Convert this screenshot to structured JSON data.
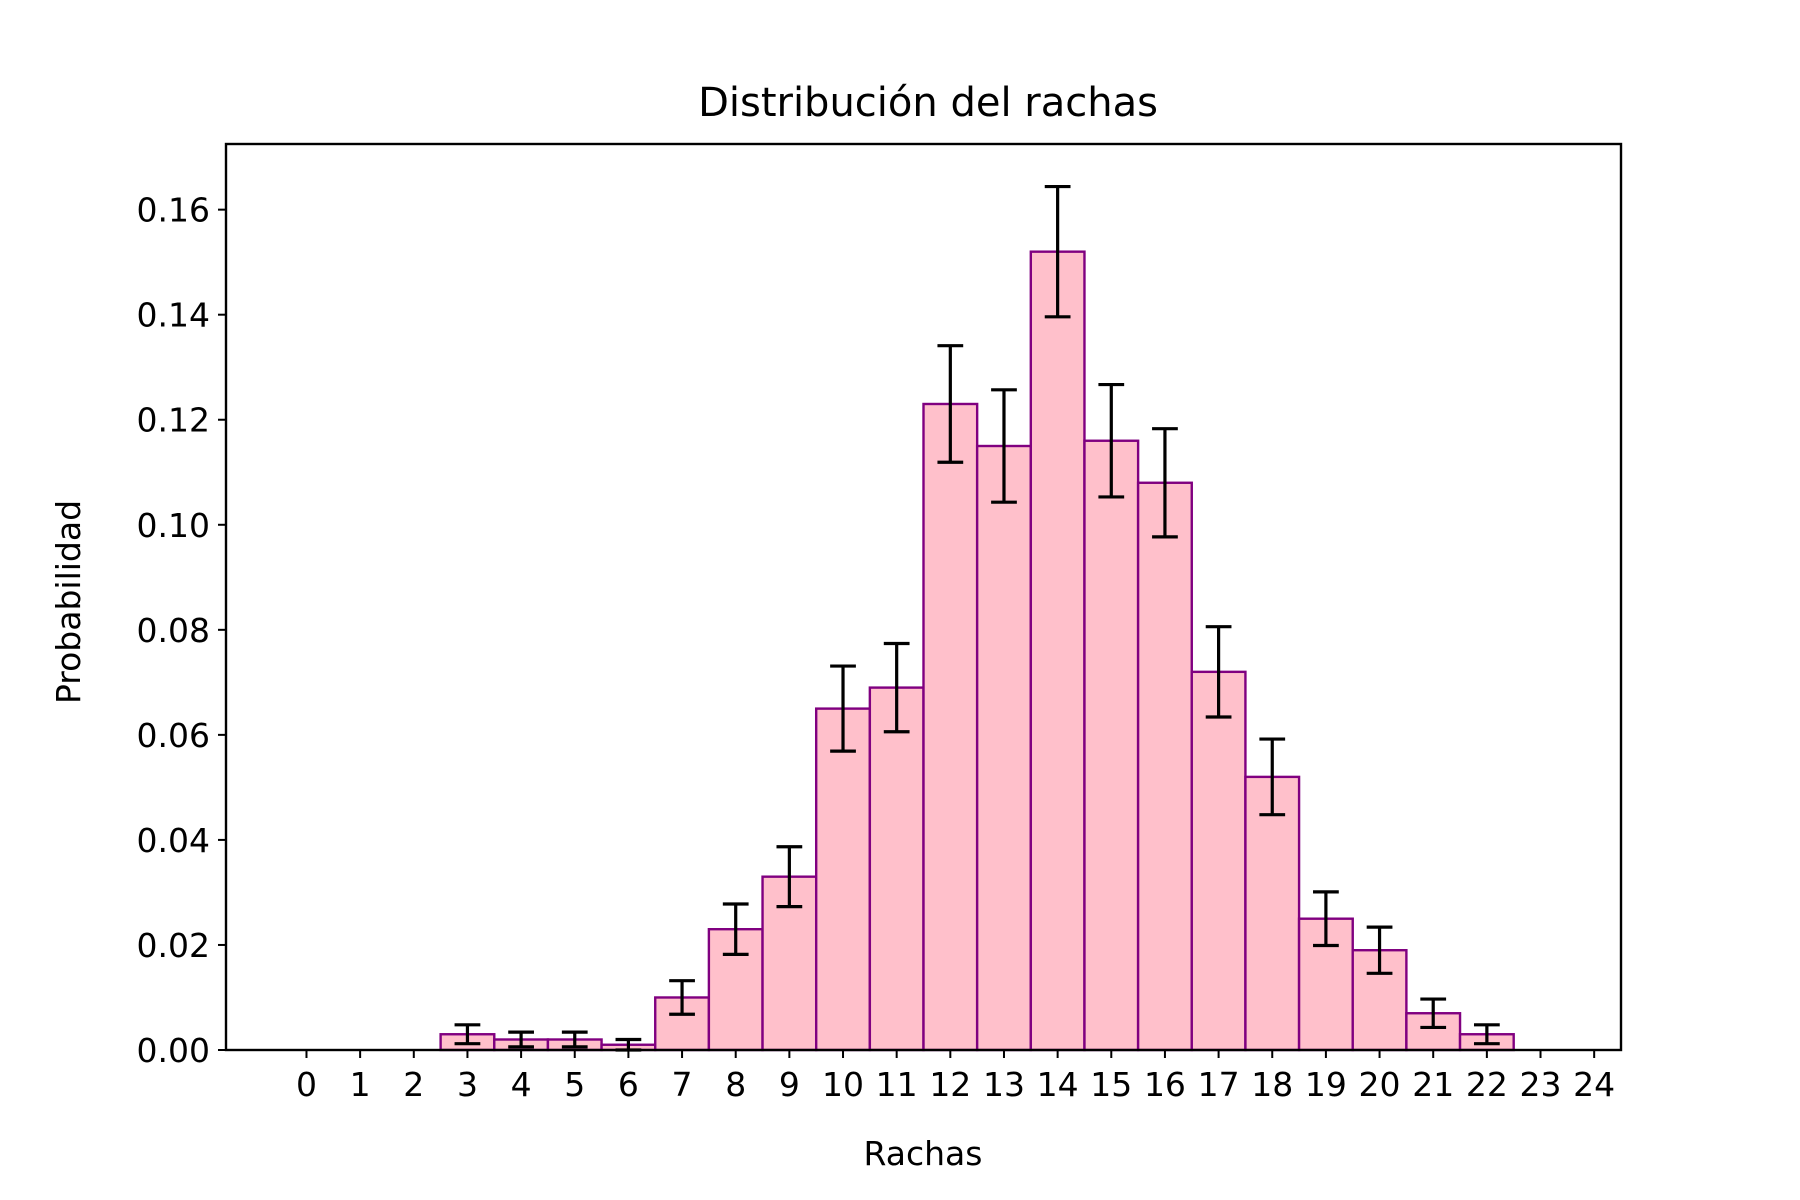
{
  "chart_data": {
    "type": "bar",
    "title": "Distribución del rachas",
    "xlabel": "Rachas",
    "ylabel": "Probabilidad",
    "categories": [
      0,
      1,
      2,
      3,
      4,
      5,
      6,
      7,
      8,
      9,
      10,
      11,
      12,
      13,
      14,
      15,
      16,
      17,
      18,
      19,
      20,
      21,
      22,
      23,
      24
    ],
    "series": [
      {
        "name": "Probabilidad",
        "values": [
          0.0,
          0.0,
          0.0,
          0.003,
          0.002,
          0.002,
          0.001,
          0.01,
          0.023,
          0.033,
          0.065,
          0.069,
          0.123,
          0.115,
          0.152,
          0.116,
          0.108,
          0.072,
          0.052,
          0.025,
          0.019,
          0.007,
          0.003,
          0.0,
          0.0
        ],
        "errors": [
          0.0,
          0.0,
          0.0,
          0.0018,
          0.0014,
          0.0014,
          0.001,
          0.0032,
          0.0048,
          0.0057,
          0.0081,
          0.0084,
          0.0111,
          0.0107,
          0.0124,
          0.0107,
          0.0103,
          0.0086,
          0.0072,
          0.0051,
          0.0044,
          0.0027,
          0.0018,
          0.0,
          0.0
        ]
      }
    ],
    "ylim": [
      0,
      0.1725
    ],
    "xlim": [
      -1.5,
      24.5
    ],
    "yticks": [
      "0.00",
      "0.02",
      "0.04",
      "0.06",
      "0.08",
      "0.10",
      "0.12",
      "0.14",
      "0.16"
    ],
    "ytick_values": [
      0,
      0.02,
      0.04,
      0.06,
      0.08,
      0.1,
      0.12,
      0.14,
      0.16
    ],
    "bar_fill": "#ffc0cb",
    "bar_edge": "#800080",
    "error_color": "#000000",
    "grid": false
  }
}
